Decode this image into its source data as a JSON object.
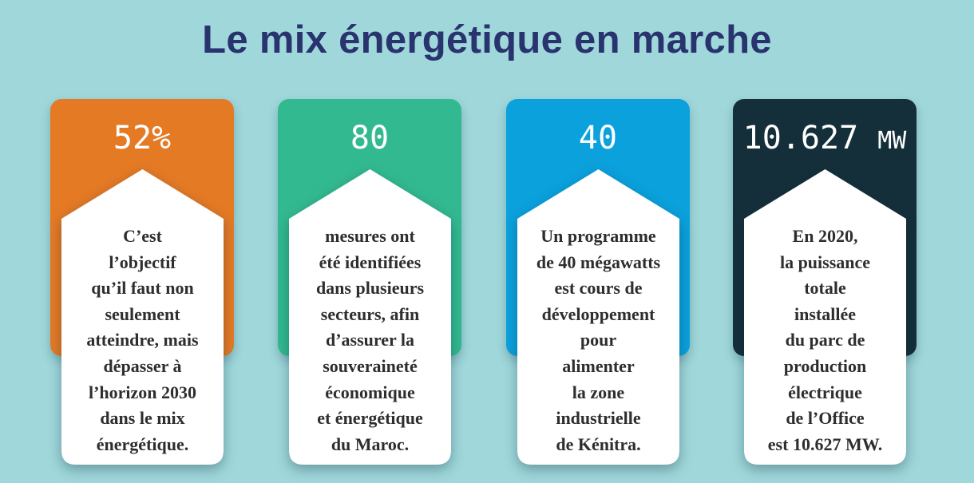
{
  "title": "Le mix énergétique en marche",
  "cards": [
    {
      "value": "52%",
      "unit": "",
      "color": "#e57a25",
      "text": "C’est\nl’objectif\nqu’il faut non\nseulement\natteindre, mais\ndépasser à\nl’horizon 2030\ndans le mix\nénergétique."
    },
    {
      "value": "80",
      "unit": "",
      "color": "#33b990",
      "text": "mesures ont\nété identifiées\ndans plusieurs\nsecteurs, afin\nd’assurer la\nsouveraineté\néconomique\net énergétique\ndu Maroc."
    },
    {
      "value": "40",
      "unit": "",
      "color": "#0ba1dd",
      "text": "Un programme\nde 40 mégawatts\nest cours de\ndéveloppement\npour\nalimenter\nla zone\nindustrielle\nde Kénitra."
    },
    {
      "value": "10.627",
      "unit": "MW",
      "color": "#152f3a",
      "text": "En 2020,\nla puissance\ntotale\ninstallée\ndu parc de\nproduction\nélectrique\nde l’Office\nest 10.627 MW."
    }
  ]
}
